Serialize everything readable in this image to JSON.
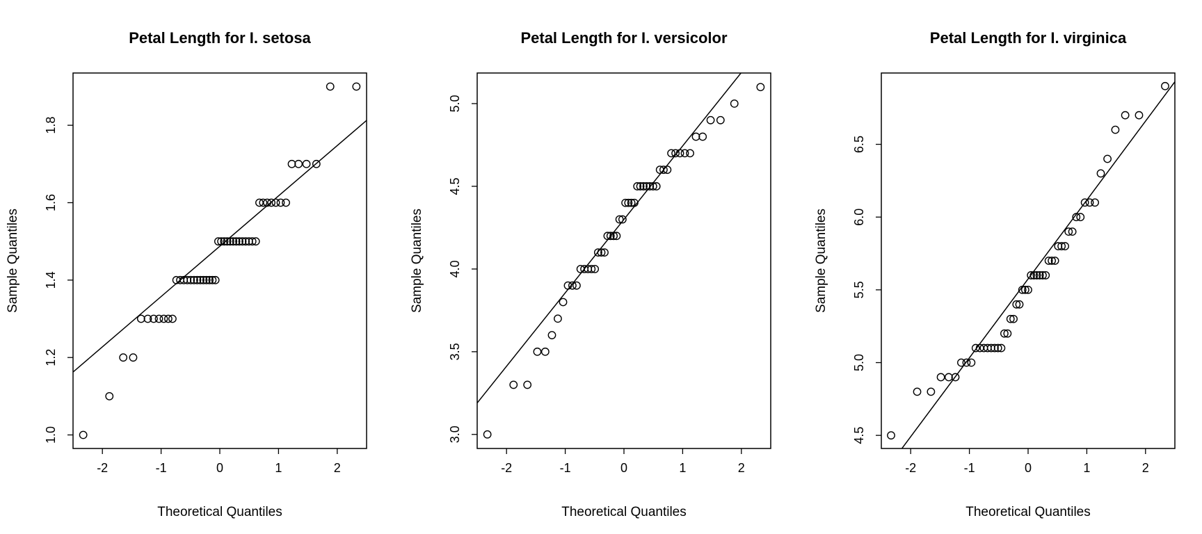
{
  "chart_data": [
    {
      "type": "scatter",
      "title": "Petal Length for I. setosa",
      "xlabel": "Theoretical Quantiles",
      "ylabel": "Sample Quantiles",
      "xlim": [
        -2.5,
        2.5
      ],
      "ylim": [
        0.965,
        1.935
      ],
      "xticks": [
        "-2",
        "-1",
        "0",
        "1",
        "2"
      ],
      "yticks": [
        "1.0",
        "1.2",
        "1.4",
        "1.6",
        "1.8"
      ],
      "ref_line": {
        "x": [
          -2.5,
          2.5
        ],
        "y": [
          1.1625,
          1.8125
        ]
      },
      "sample": [
        1.0,
        1.1,
        1.2,
        1.2,
        1.3,
        1.3,
        1.3,
        1.3,
        1.3,
        1.3,
        1.3,
        1.4,
        1.4,
        1.4,
        1.4,
        1.4,
        1.4,
        1.4,
        1.4,
        1.4,
        1.4,
        1.4,
        1.4,
        1.4,
        1.5,
        1.5,
        1.5,
        1.5,
        1.5,
        1.5,
        1.5,
        1.5,
        1.5,
        1.5,
        1.5,
        1.5,
        1.5,
        1.6,
        1.6,
        1.6,
        1.6,
        1.6,
        1.6,
        1.6,
        1.7,
        1.7,
        1.7,
        1.7,
        1.9,
        1.9
      ]
    },
    {
      "type": "scatter",
      "title": "Petal Length for I. versicolor",
      "xlabel": "Theoretical Quantiles",
      "ylabel": "Sample Quantiles",
      "xlim": [
        -2.5,
        2.5
      ],
      "ylim": [
        2.915,
        5.185
      ],
      "xticks": [
        "-2",
        "-1",
        "0",
        "1",
        "2"
      ],
      "yticks": [
        "3.0",
        "3.5",
        "4.0",
        "4.5",
        "5.0"
      ],
      "ref_line": {
        "x": [
          -2.5,
          2.5
        ],
        "y": [
          3.19,
          5.41
        ]
      },
      "sample": [
        3.0,
        3.3,
        3.3,
        3.5,
        3.5,
        3.6,
        3.7,
        3.8,
        3.9,
        3.9,
        3.9,
        4.0,
        4.0,
        4.0,
        4.0,
        4.0,
        4.1,
        4.1,
        4.1,
        4.2,
        4.2,
        4.2,
        4.2,
        4.3,
        4.3,
        4.4,
        4.4,
        4.4,
        4.4,
        4.5,
        4.5,
        4.5,
        4.5,
        4.5,
        4.5,
        4.5,
        4.6,
        4.6,
        4.6,
        4.7,
        4.7,
        4.7,
        4.7,
        4.7,
        4.8,
        4.8,
        4.9,
        4.9,
        5.0,
        5.1
      ]
    },
    {
      "type": "scatter",
      "title": "Petal Length for I. virginica",
      "xlabel": "Theoretical Quantiles",
      "ylabel": "Sample Quantiles",
      "xlim": [
        -2.5,
        2.5
      ],
      "ylim": [
        4.41,
        6.99
      ],
      "xticks": [
        "-2",
        "-1",
        "0",
        "1",
        "2"
      ],
      "yticks": [
        "4.5",
        "5.0",
        "5.5",
        "6.0",
        "6.5"
      ],
      "ref_line": {
        "x": [
          -2.5,
          2.5
        ],
        "y": [
          4.22,
          6.93
        ]
      },
      "sample": [
        4.5,
        4.8,
        4.8,
        4.9,
        4.9,
        4.9,
        5.0,
        5.0,
        5.0,
        5.1,
        5.1,
        5.1,
        5.1,
        5.1,
        5.1,
        5.1,
        5.1,
        5.2,
        5.2,
        5.3,
        5.3,
        5.4,
        5.4,
        5.5,
        5.5,
        5.5,
        5.6,
        5.6,
        5.6,
        5.6,
        5.6,
        5.6,
        5.7,
        5.7,
        5.7,
        5.8,
        5.8,
        5.8,
        5.9,
        5.9,
        6.0,
        6.0,
        6.1,
        6.1,
        6.1,
        6.3,
        6.4,
        6.6,
        6.7,
        6.7,
        6.9
      ]
    }
  ]
}
